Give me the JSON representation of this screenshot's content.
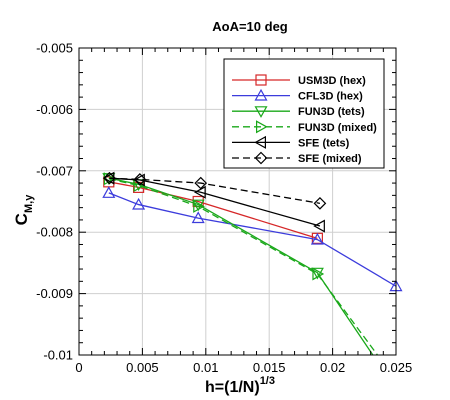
{
  "chart_data": {
    "type": "line",
    "title": "AoA=10 deg",
    "ylabel_main": "C",
    "ylabel_sub": "M,y",
    "xlabel_main": "h=(1/N)",
    "xlabel_sup": "1/3",
    "xlim": [
      0,
      0.025
    ],
    "ylim": [
      -0.01,
      -0.005
    ],
    "xticks": [
      0,
      0.005,
      0.01,
      0.015,
      0.02,
      0.025
    ],
    "xtick_labels": [
      "0",
      "0.005",
      "0.01",
      "0.015",
      "0.02",
      "0.025"
    ],
    "yticks": [
      -0.01,
      -0.009,
      -0.008,
      -0.007,
      -0.006,
      -0.005
    ],
    "ytick_labels": [
      "-0.01",
      "-0.009",
      "-0.008",
      "-0.007",
      "-0.006",
      "-0.005"
    ],
    "grid": true,
    "legend_position": "top-right",
    "series": [
      {
        "name": "USM3D (hex)",
        "color": "#d62728",
        "marker": "square",
        "dash": false,
        "points": [
          [
            0.00235,
            -0.00718
          ],
          [
            0.0047,
            -0.00727
          ],
          [
            0.0094,
            -0.0075
          ],
          [
            0.0188,
            -0.0081
          ]
        ]
      },
      {
        "name": "CFL3D (hex)",
        "color": "#3c3cdc",
        "marker": "triangle-up",
        "dash": false,
        "points": [
          [
            0.00235,
            -0.00736
          ],
          [
            0.0047,
            -0.00755
          ],
          [
            0.0094,
            -0.00777
          ],
          [
            0.0188,
            -0.00812
          ],
          [
            0.025,
            -0.00888
          ]
        ]
      },
      {
        "name": "FUN3D (tets)",
        "color": "#1aa81a",
        "marker": "triangle-down",
        "dash": false,
        "points": [
          [
            0.00235,
            -0.00712
          ],
          [
            0.0047,
            -0.00722
          ],
          [
            0.0094,
            -0.00755
          ],
          [
            0.0188,
            -0.00866
          ],
          [
            0.0235,
            -0.0101
          ]
        ]
      },
      {
        "name": "FUN3D (mixed)",
        "color": "#1aa81a",
        "marker": "triangle-right",
        "dash": true,
        "points": [
          [
            0.00235,
            -0.00713
          ],
          [
            0.0047,
            -0.00724
          ],
          [
            0.0094,
            -0.00758
          ],
          [
            0.0188,
            -0.00868
          ],
          [
            0.0239,
            -0.0101
          ]
        ]
      },
      {
        "name": "SFE (tets)",
        "color": "#000000",
        "marker": "triangle-left",
        "dash": false,
        "points": [
          [
            0.0024,
            -0.00712
          ],
          [
            0.0048,
            -0.00715
          ],
          [
            0.0096,
            -0.00735
          ],
          [
            0.019,
            -0.0079
          ]
        ]
      },
      {
        "name": "SFE (mixed)",
        "color": "#000000",
        "marker": "diamond",
        "dash": true,
        "points": [
          [
            0.0024,
            -0.00712
          ],
          [
            0.0048,
            -0.00714
          ],
          [
            0.0096,
            -0.0072
          ],
          [
            0.019,
            -0.00753
          ]
        ]
      }
    ]
  }
}
